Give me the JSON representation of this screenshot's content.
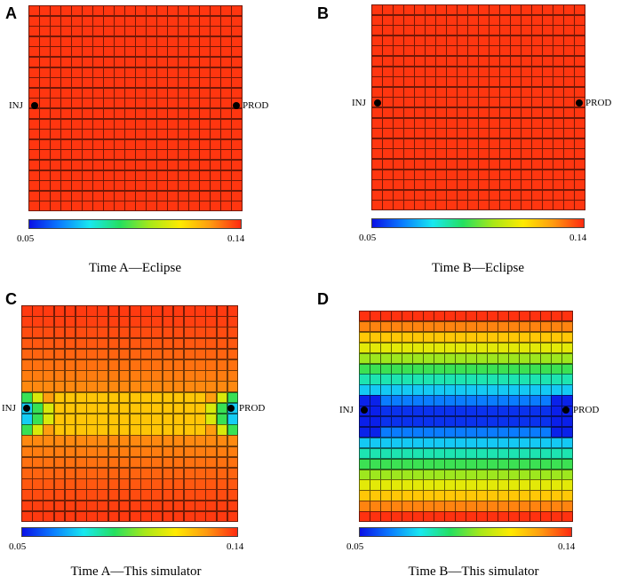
{
  "colors": {
    "colormap": [
      "#0a10e6",
      "#0a7cff",
      "#18e8f0",
      "#24e060",
      "#a8e818",
      "#ffea00",
      "#ff9a10",
      "#ff2a10"
    ],
    "cell_border": "#000000"
  },
  "panels": [
    {
      "letter": "A",
      "caption": "Time A—Eclipse",
      "inj_label": "INJ",
      "prod_label": "PROD",
      "colorbar_min": "0.05",
      "colorbar_max": "0.14",
      "grid_size": [
        20,
        20
      ],
      "field": "uniform_high"
    },
    {
      "letter": "B",
      "caption": "Time B—Eclipse",
      "inj_label": "INJ",
      "prod_label": "PROD",
      "colorbar_min": "0.05",
      "colorbar_max": "0.14",
      "grid_size": [
        20,
        20
      ],
      "field": "uniform_high"
    },
    {
      "letter": "C",
      "caption": "Time A—This simulator",
      "inj_label": "INJ",
      "prod_label": "PROD",
      "colorbar_min": "0.05",
      "colorbar_max": "0.14",
      "grid_size": [
        20,
        20
      ],
      "field": "narrow_band"
    },
    {
      "letter": "D",
      "caption": "Time B—This simulator",
      "inj_label": "INJ",
      "prod_label": "PROD",
      "colorbar_min": "0.05",
      "colorbar_max": "0.14",
      "grid_size": [
        20,
        20
      ],
      "field": "wide_band"
    }
  ]
}
